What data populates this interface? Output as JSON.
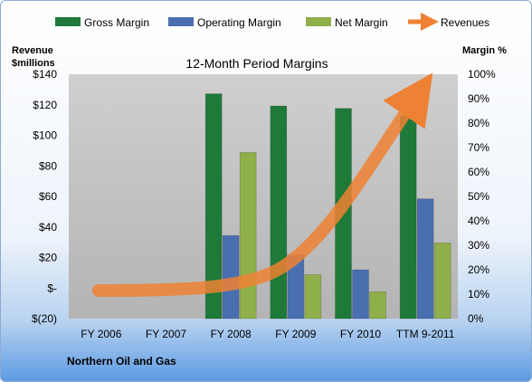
{
  "chart_data": {
    "type": "bar",
    "title": "12-Month Period Margins",
    "company": "Northern Oil and Gas",
    "y_left_label_line1": "Revenue",
    "y_left_label_line2": "$millions",
    "y_right_label": "Margin %",
    "categories": [
      "FY 2006",
      "FY 2007",
      "FY 2008",
      "FY 2009",
      "FY 2010",
      "TTM 9-2011"
    ],
    "ylim_left": [
      -20,
      140
    ],
    "ylim_right": [
      0,
      100
    ],
    "left_ticks": [
      "$(20)",
      "$-",
      "$20",
      "$40",
      "$60",
      "$80",
      "$100",
      "$120",
      "$140"
    ],
    "right_ticks": [
      "0%",
      "10%",
      "20%",
      "30%",
      "40%",
      "50%",
      "60%",
      "70%",
      "80%",
      "90%",
      "100%"
    ],
    "series": [
      {
        "name": "Gross Margin",
        "type": "bar",
        "axis": "right",
        "color": "#1f7a3a",
        "values": [
          null,
          null,
          92,
          87,
          86,
          83
        ]
      },
      {
        "name": "Operating Margin",
        "type": "bar",
        "axis": "right",
        "color": "#4a6fb0",
        "values": [
          null,
          null,
          34,
          26,
          20,
          49
        ]
      },
      {
        "name": "Net Margin",
        "type": "bar",
        "axis": "right",
        "color": "#8faf4a",
        "values": [
          null,
          null,
          68,
          18,
          11,
          31
        ]
      },
      {
        "name": "Revenues",
        "type": "line",
        "axis": "left",
        "color": "#ee8133",
        "values": [
          null,
          null,
          null,
          null,
          null,
          null
        ]
      }
    ],
    "grid": false,
    "legend_position": "top"
  }
}
